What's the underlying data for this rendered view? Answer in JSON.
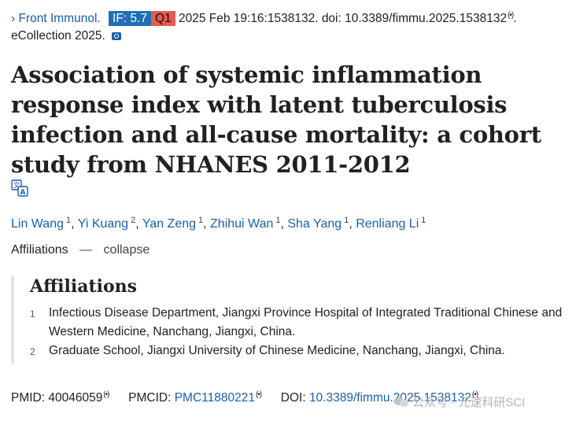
{
  "citation": {
    "chevron": "›",
    "journal": "Front Immunol.",
    "if_badge": "IF: 5.7",
    "quartile_badge": "Q1",
    "date_line": " 2025 Feb 19:16:1538132. doi: 10.3389/fimmu.2025.1538132",
    "sig": "(•)",
    "period": ".",
    "ecollection": "eCollection 2025.",
    "colors": {
      "if_badge": "#1f6fb5",
      "quartile_badge": "#e85a4f",
      "link": "#1b5fa8"
    }
  },
  "title": "Association of systemic inflammation response index with latent tuberculosis infection and all-cause mortality: a cohort study from NHANES 2011-2012",
  "translate_icon": "translate-icon",
  "authors": [
    {
      "name": "Lin Wang",
      "sup": "1",
      "sep": ", "
    },
    {
      "name": "Yi Kuang",
      "sup": "2",
      "sep": ", "
    },
    {
      "name": "Yan Zeng",
      "sup": "1",
      "sep": ", "
    },
    {
      "name": "Zhihui Wan",
      "sup": "1",
      "sep": ", "
    },
    {
      "name": "Sha Yang",
      "sup": "1",
      "sep": ", "
    },
    {
      "name": "Renliang Li",
      "sup": "1",
      "sep": ""
    }
  ],
  "affiliations_toggle": {
    "label": "Affiliations",
    "dash": "—",
    "action": "collapse"
  },
  "affiliations": {
    "heading": "Affiliations",
    "items": [
      {
        "num": "1",
        "text": "Infectious Disease Department, Jiangxi Province Hospital of Integrated Traditional Chinese and Western Medicine, Nanchang, Jiangxi, China."
      },
      {
        "num": "2",
        "text": "Graduate School, Jiangxi University of Chinese Medicine, Nanchang, Jiangxi, China."
      }
    ]
  },
  "identifiers": {
    "pmid_label": "PMID: ",
    "pmid": "40046059",
    "pmcid_label": "PMCID: ",
    "pmcid": "PMC11880221",
    "doi_label": "DOI: ",
    "doi": "10.3389/fimmu.2025.1538132",
    "sig": "(•)"
  },
  "watermark": "公众号 · 元速科研SCI"
}
